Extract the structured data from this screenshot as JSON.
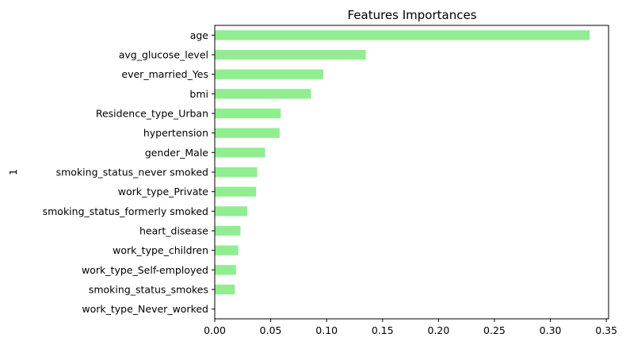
{
  "chart_data": {
    "type": "bar",
    "orientation": "horizontal",
    "title": "Features Importances",
    "xlabel": "",
    "ylabel": "1",
    "xlim": [
      0,
      0.352
    ],
    "x_ticks": [
      0.0,
      0.05,
      0.1,
      0.15,
      0.2,
      0.25,
      0.3,
      0.35
    ],
    "x_tick_labels": [
      "0.00",
      "0.05",
      "0.10",
      "0.15",
      "0.20",
      "0.25",
      "0.30",
      "0.35"
    ],
    "grid": false,
    "bar_color": "#90ee90",
    "categories": [
      "age",
      "avg_glucose_level",
      "ever_married_Yes",
      "bmi",
      "Residence_type_Urban",
      "hypertension",
      "gender_Male",
      "smoking_status_never smoked",
      "work_type_Private",
      "smoking_status_formerly smoked",
      "heart_disease",
      "work_type_children",
      "work_type_Self-employed",
      "smoking_status_smokes",
      "work_type_Never_worked"
    ],
    "values": [
      0.335,
      0.135,
      0.097,
      0.086,
      0.059,
      0.058,
      0.045,
      0.038,
      0.037,
      0.029,
      0.023,
      0.021,
      0.019,
      0.018,
      0.0
    ]
  }
}
